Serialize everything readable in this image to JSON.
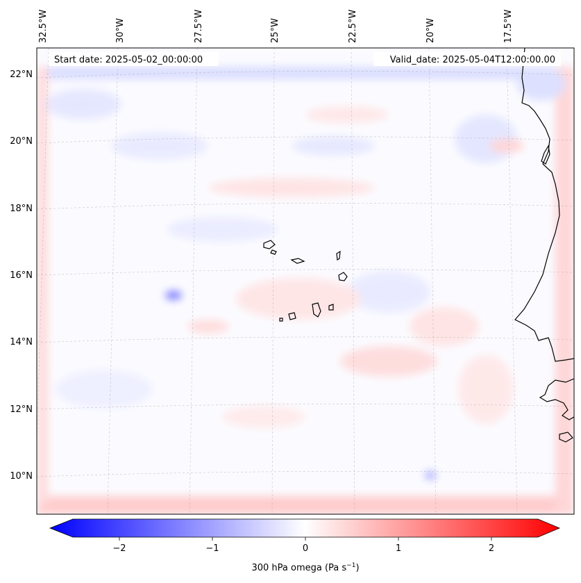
{
  "header": {
    "start_date": "Start date: 2025-05-02_00:00:00",
    "valid_date": "Valid_date: 2025-05-04T12:00:00.00"
  },
  "map": {
    "lon_labels": [
      "32.5°W",
      "30°W",
      "27.5°W",
      "25°W",
      "22.5°W",
      "20°W",
      "17.5°W"
    ],
    "lat_labels": [
      "22°N",
      "20°N",
      "18°N",
      "16°N",
      "14°N",
      "12°N",
      "10°N"
    ],
    "colors": {
      "negative": "#0000ff",
      "neutral": "#ffffff",
      "positive": "#ff0000",
      "coastline": "#000000",
      "gridline": "#999999"
    }
  },
  "colorbar": {
    "ticks": [
      "−2",
      "−1",
      "0",
      "1",
      "2"
    ],
    "tick_values": [
      -2,
      -1,
      0,
      1,
      2
    ],
    "range": [
      -2.5,
      2.5
    ],
    "label": "300 hPa omega (Pa s",
    "label_sup": "−1",
    "label_end": ")"
  }
}
